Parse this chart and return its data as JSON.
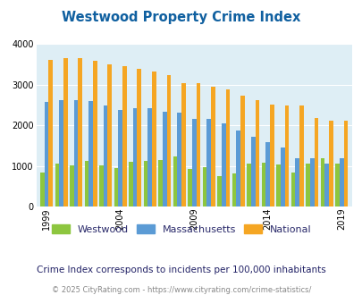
{
  "title": "Westwood Property Crime Index",
  "years": [
    1999,
    2000,
    2001,
    2002,
    2003,
    2004,
    2005,
    2006,
    2007,
    2008,
    2009,
    2010,
    2011,
    2012,
    2013,
    2014,
    2015,
    2016,
    2017,
    2018,
    2019
  ],
  "westwood": [
    840,
    1060,
    1020,
    1120,
    1010,
    940,
    1110,
    1120,
    1140,
    1240,
    920,
    960,
    760,
    820,
    1060,
    1080,
    1030,
    830,
    1050,
    1190,
    1050
  ],
  "massachusetts": [
    2570,
    2630,
    2620,
    2590,
    2490,
    2380,
    2430,
    2430,
    2340,
    2320,
    2160,
    2160,
    2060,
    1880,
    1710,
    1580,
    1460,
    1200,
    1190,
    1060,
    1200
  ],
  "national": [
    3620,
    3660,
    3660,
    3600,
    3510,
    3460,
    3400,
    3330,
    3230,
    3050,
    3050,
    2960,
    2890,
    2740,
    2620,
    2510,
    2490,
    2480,
    2190,
    2110,
    2110
  ],
  "westwood_color": "#8dc63f",
  "massachusetts_color": "#5b9bd5",
  "national_color": "#f5a623",
  "bg_color": "#deeef5",
  "ylim": [
    0,
    4000
  ],
  "yticks": [
    0,
    1000,
    2000,
    3000,
    4000
  ],
  "xlabel_ticks": [
    1999,
    2004,
    2009,
    2014,
    2019
  ],
  "bar_width": 0.28,
  "subtitle": "Crime Index corresponds to incidents per 100,000 inhabitants",
  "footer": "© 2025 CityRating.com - https://www.cityrating.com/crime-statistics/",
  "legend_labels": [
    "Westwood",
    "Massachusetts",
    "National"
  ],
  "title_color": "#1060a0",
  "subtitle_color": "#222266",
  "footer_color": "#888888"
}
